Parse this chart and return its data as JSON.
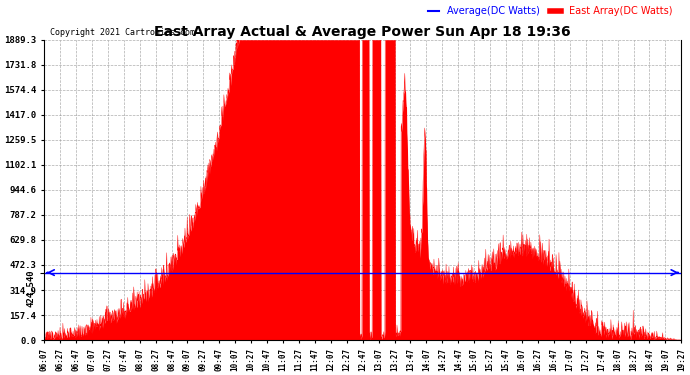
{
  "title": "East Array Actual & Average Power Sun Apr 18 19:36",
  "copyright": "Copyright 2021 Cartronics.com",
  "legend_avg": "Average(DC Watts)",
  "legend_east": "East Array(DC Watts)",
  "avg_label": "424.540",
  "avg_value": 424.54,
  "ymax": 1889.3,
  "ymin": 0.0,
  "yticks_right": [
    0.0,
    157.4,
    314.9,
    472.3,
    629.8,
    787.2,
    944.6,
    1102.1,
    1259.5,
    1417.0,
    1574.4,
    1731.8,
    1889.3
  ],
  "background_color": "#ffffff",
  "fill_color": "#ff0000",
  "avg_line_color": "#0000ff",
  "grid_color": "#999999",
  "title_color": "#000000",
  "copyright_color": "#000000",
  "time_labels": [
    "06:07",
    "06:27",
    "06:47",
    "07:07",
    "07:27",
    "07:47",
    "08:07",
    "08:27",
    "08:47",
    "09:07",
    "09:27",
    "09:47",
    "10:07",
    "10:27",
    "10:47",
    "11:07",
    "11:27",
    "11:47",
    "12:07",
    "12:27",
    "12:47",
    "13:07",
    "13:27",
    "13:47",
    "14:07",
    "14:27",
    "14:47",
    "15:07",
    "15:27",
    "15:47",
    "16:07",
    "16:27",
    "16:47",
    "17:07",
    "17:27",
    "17:47",
    "18:07",
    "18:27",
    "18:47",
    "19:07",
    "19:27"
  ],
  "legend_avg_color": "#0000ff",
  "legend_east_color": "#ff0000"
}
